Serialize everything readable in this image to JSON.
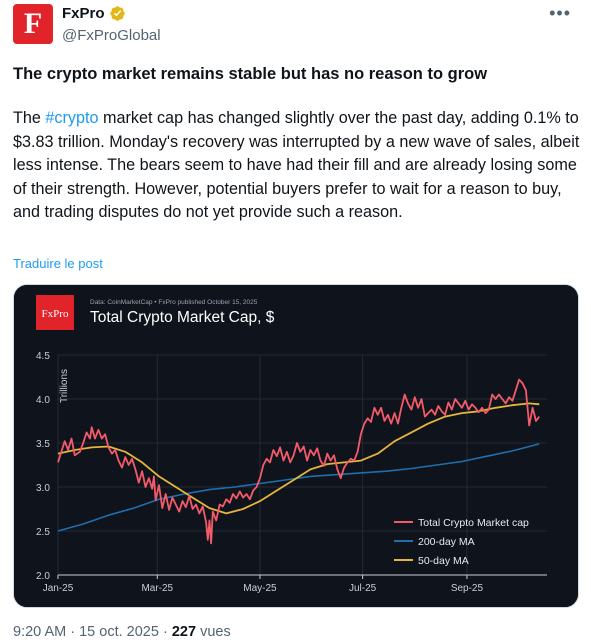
{
  "author": {
    "logo_letter": "F",
    "name": "FxPro",
    "handle": "@FxProGlobal"
  },
  "post": {
    "headline": "The crypto market remains stable but has no reason to grow",
    "text_before": "The ",
    "hashtag": "#crypto",
    "text_after": " market cap has changed slightly over the past day, adding 0.1% to $3.83 trillion. Monday's recovery was interrupted by a new wave of sales, albeit less intense. The bears seem to have had their fill and are already losing some of their strength. However, potential buyers prefer to wait for a reason to buy, and trading disputes do not yet provide such a reason.",
    "translate_label": "Traduire le post"
  },
  "meta": {
    "time": "9:20 AM",
    "date": "15 oct. 2025",
    "separator": "·",
    "views_count": "227",
    "views_label": "vues"
  },
  "chart_brand": "FxPro",
  "chart_data": {
    "type": "line",
    "source": "Data: CoinMarketCap • FxPro published October 15, 2025",
    "title": "Total Crypto Market Cap, $",
    "ylabel": "Trillions",
    "xlabel": "",
    "ylim": [
      2.0,
      4.5
    ],
    "yticks": [
      "2.0",
      "2.5",
      "3.0",
      "3.5",
      "4.0",
      "4.5"
    ],
    "xticks": [
      "Jan-25",
      "Mar-25",
      "May-25",
      "Jul-25",
      "Sep-25"
    ],
    "xtick_positions": [
      0,
      59,
      120,
      181,
      243
    ],
    "x_days": 287,
    "grid": true,
    "legend_position": "bottom-right",
    "colors": {
      "market_cap": "#f45b69",
      "ma200": "#1f6fae",
      "ma50": "#e6b53c",
      "background": "#0f131c"
    },
    "series": [
      {
        "name": "Total Crypto Market cap",
        "points": [
          [
            0,
            3.28
          ],
          [
            4,
            3.52
          ],
          [
            6,
            3.42
          ],
          [
            8,
            3.55
          ],
          [
            10,
            3.36
          ],
          [
            13,
            3.4
          ],
          [
            15,
            3.5
          ],
          [
            17,
            3.62
          ],
          [
            19,
            3.55
          ],
          [
            20,
            3.68
          ],
          [
            22,
            3.55
          ],
          [
            24,
            3.65
          ],
          [
            26,
            3.55
          ],
          [
            28,
            3.6
          ],
          [
            30,
            3.45
          ],
          [
            32,
            3.38
          ],
          [
            34,
            3.42
          ],
          [
            36,
            3.3
          ],
          [
            38,
            3.22
          ],
          [
            40,
            3.34
          ],
          [
            42,
            3.25
          ],
          [
            44,
            3.32
          ],
          [
            46,
            3.2
          ],
          [
            48,
            3.05
          ],
          [
            50,
            3.18
          ],
          [
            52,
            3.0
          ],
          [
            54,
            3.1
          ],
          [
            56,
            2.98
          ],
          [
            57,
            3.12
          ],
          [
            58,
            2.85
          ],
          [
            60,
            3.02
          ],
          [
            62,
            2.76
          ],
          [
            64,
            2.92
          ],
          [
            66,
            2.74
          ],
          [
            68,
            2.88
          ],
          [
            70,
            2.8
          ],
          [
            72,
            2.72
          ],
          [
            74,
            2.84
          ],
          [
            76,
            2.77
          ],
          [
            78,
            2.9
          ],
          [
            80,
            2.75
          ],
          [
            82,
            2.8
          ],
          [
            84,
            2.7
          ],
          [
            86,
            2.78
          ],
          [
            88,
            2.6
          ],
          [
            89,
            2.4
          ],
          [
            90,
            2.62
          ],
          [
            91,
            2.36
          ],
          [
            92,
            2.72
          ],
          [
            94,
            2.62
          ],
          [
            96,
            2.8
          ],
          [
            98,
            2.78
          ],
          [
            100,
            2.86
          ],
          [
            102,
            2.82
          ],
          [
            104,
            2.92
          ],
          [
            106,
            2.87
          ],
          [
            108,
            2.95
          ],
          [
            110,
            2.88
          ],
          [
            112,
            2.92
          ],
          [
            114,
            2.86
          ],
          [
            116,
            2.96
          ],
          [
            118,
            3.0
          ],
          [
            120,
            3.1
          ],
          [
            122,
            3.25
          ],
          [
            124,
            3.32
          ],
          [
            126,
            3.28
          ],
          [
            128,
            3.42
          ],
          [
            130,
            3.35
          ],
          [
            132,
            3.45
          ],
          [
            134,
            3.3
          ],
          [
            136,
            3.4
          ],
          [
            138,
            3.28
          ],
          [
            140,
            3.36
          ],
          [
            142,
            3.5
          ],
          [
            144,
            3.4
          ],
          [
            146,
            3.46
          ],
          [
            148,
            3.3
          ],
          [
            150,
            3.42
          ],
          [
            152,
            3.36
          ],
          [
            154,
            3.44
          ],
          [
            156,
            3.3
          ],
          [
            158,
            3.24
          ],
          [
            160,
            3.38
          ],
          [
            162,
            3.3
          ],
          [
            164,
            3.36
          ],
          [
            166,
            3.2
          ],
          [
            168,
            3.1
          ],
          [
            170,
            3.22
          ],
          [
            172,
            3.28
          ],
          [
            174,
            3.32
          ],
          [
            176,
            3.3
          ],
          [
            178,
            3.4
          ],
          [
            180,
            3.6
          ],
          [
            182,
            3.72
          ],
          [
            184,
            3.78
          ],
          [
            186,
            3.74
          ],
          [
            188,
            3.9
          ],
          [
            190,
            3.82
          ],
          [
            192,
            3.9
          ],
          [
            194,
            3.75
          ],
          [
            196,
            3.82
          ],
          [
            198,
            3.72
          ],
          [
            200,
            3.84
          ],
          [
            202,
            3.72
          ],
          [
            204,
            3.9
          ],
          [
            206,
            4.05
          ],
          [
            208,
            3.95
          ],
          [
            210,
            3.88
          ],
          [
            212,
            4.02
          ],
          [
            214,
            3.9
          ],
          [
            216,
            4.0
          ],
          [
            218,
            3.8
          ],
          [
            220,
            3.84
          ],
          [
            222,
            3.88
          ],
          [
            224,
            3.82
          ],
          [
            226,
            3.92
          ],
          [
            228,
            3.86
          ],
          [
            230,
            3.82
          ],
          [
            232,
            3.96
          ],
          [
            234,
            3.88
          ],
          [
            236,
            4.0
          ],
          [
            238,
            3.95
          ],
          [
            240,
            3.9
          ],
          [
            242,
            3.98
          ],
          [
            244,
            3.88
          ],
          [
            246,
            3.94
          ],
          [
            248,
            3.9
          ],
          [
            250,
            3.85
          ],
          [
            252,
            3.9
          ],
          [
            254,
            3.84
          ],
          [
            256,
            3.88
          ],
          [
            258,
            4.05
          ],
          [
            260,
            4.0
          ],
          [
            262,
            4.05
          ],
          [
            264,
            4.0
          ],
          [
            266,
            3.95
          ],
          [
            268,
            4.02
          ],
          [
            270,
            3.98
          ],
          [
            272,
            4.1
          ],
          [
            274,
            4.22
          ],
          [
            276,
            4.18
          ],
          [
            278,
            4.1
          ],
          [
            280,
            3.7
          ],
          [
            282,
            3.9
          ],
          [
            284,
            3.75
          ],
          [
            286,
            3.8
          ]
        ]
      },
      {
        "name": "200-day MA",
        "points": [
          [
            0,
            2.5
          ],
          [
            15,
            2.58
          ],
          [
            30,
            2.68
          ],
          [
            45,
            2.76
          ],
          [
            60,
            2.86
          ],
          [
            75,
            2.92
          ],
          [
            90,
            2.97
          ],
          [
            105,
            3.0
          ],
          [
            120,
            3.04
          ],
          [
            135,
            3.08
          ],
          [
            150,
            3.12
          ],
          [
            165,
            3.14
          ],
          [
            180,
            3.16
          ],
          [
            195,
            3.18
          ],
          [
            210,
            3.21
          ],
          [
            225,
            3.25
          ],
          [
            240,
            3.29
          ],
          [
            255,
            3.35
          ],
          [
            270,
            3.41
          ],
          [
            286,
            3.49
          ]
        ]
      },
      {
        "name": "50-day MA",
        "points": [
          [
            0,
            3.38
          ],
          [
            10,
            3.42
          ],
          [
            20,
            3.45
          ],
          [
            30,
            3.46
          ],
          [
            40,
            3.4
          ],
          [
            50,
            3.28
          ],
          [
            60,
            3.12
          ],
          [
            70,
            3.0
          ],
          [
            80,
            2.88
          ],
          [
            90,
            2.76
          ],
          [
            100,
            2.7
          ],
          [
            110,
            2.75
          ],
          [
            120,
            2.84
          ],
          [
            130,
            2.96
          ],
          [
            140,
            3.08
          ],
          [
            150,
            3.2
          ],
          [
            160,
            3.26
          ],
          [
            170,
            3.28
          ],
          [
            180,
            3.3
          ],
          [
            190,
            3.38
          ],
          [
            200,
            3.52
          ],
          [
            210,
            3.62
          ],
          [
            220,
            3.72
          ],
          [
            230,
            3.8
          ],
          [
            240,
            3.84
          ],
          [
            250,
            3.86
          ],
          [
            260,
            3.9
          ],
          [
            270,
            3.93
          ],
          [
            280,
            3.95
          ],
          [
            286,
            3.94
          ]
        ]
      }
    ]
  }
}
